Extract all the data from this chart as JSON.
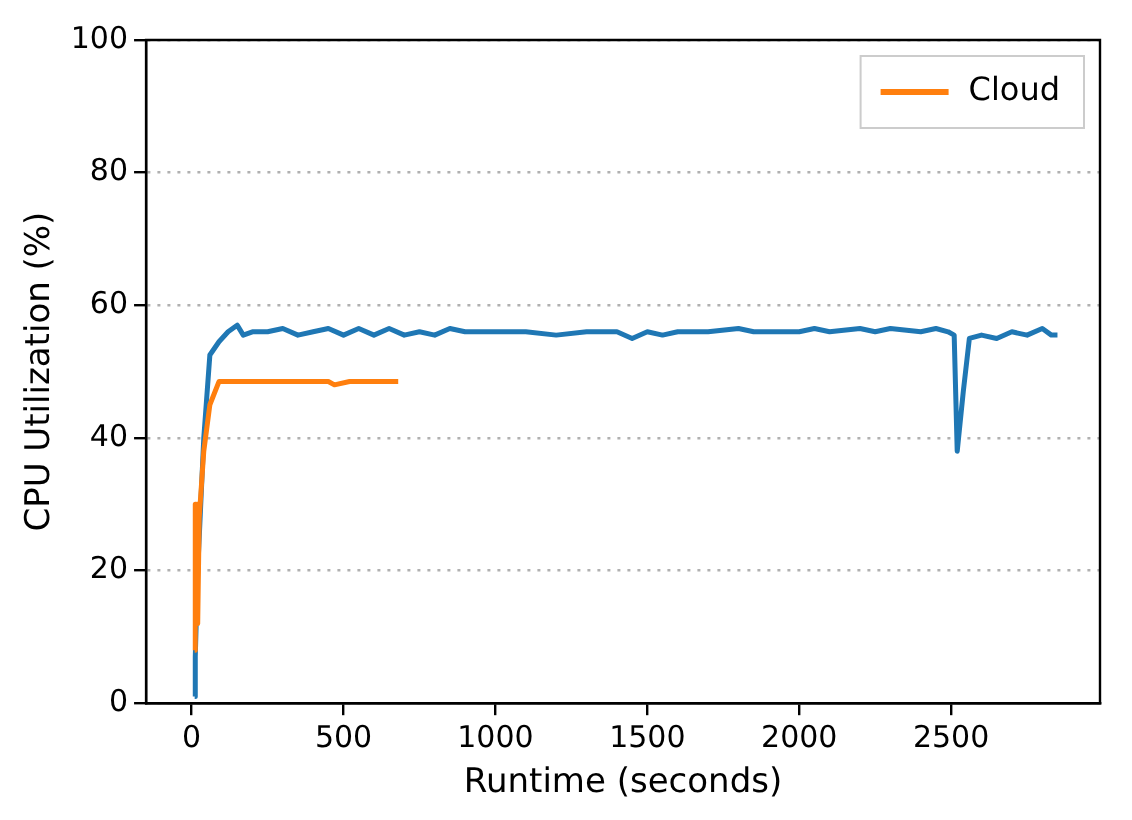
{
  "chart_data": {
    "type": "line",
    "xlabel": "Runtime (seconds)",
    "ylabel": "CPU Utilization (%)",
    "xlim": [
      -150,
      2990
    ],
    "ylim": [
      0,
      100
    ],
    "xticks": [
      0,
      500,
      1000,
      1500,
      2000,
      2500
    ],
    "yticks": [
      0,
      20,
      40,
      60,
      80,
      100
    ],
    "grid": "y",
    "legend": "top right",
    "marker": "none",
    "line_style": "solid",
    "series": [
      {
        "color": "#1f77b4",
        "x": [
          10,
          12,
          20,
          40,
          60,
          90,
          120,
          150,
          170,
          200,
          250,
          300,
          350,
          400,
          450,
          500,
          550,
          600,
          650,
          700,
          750,
          800,
          850,
          900,
          950,
          1000,
          1100,
          1200,
          1300,
          1400,
          1450,
          1500,
          1550,
          1600,
          1700,
          1800,
          1850,
          1900,
          2000,
          2050,
          2100,
          2200,
          2250,
          2300,
          2400,
          2450,
          2490,
          2510,
          2520,
          2540,
          2560,
          2600,
          2650,
          2700,
          2750,
          2800,
          2830,
          2850
        ],
        "values": [
          1,
          7,
          20,
          40,
          52.5,
          54.5,
          56,
          57,
          55.5,
          56,
          56,
          56.5,
          55.5,
          56,
          56.5,
          55.5,
          56.5,
          55.5,
          56.5,
          55.5,
          56,
          55.5,
          56.5,
          56,
          56,
          56,
          56,
          55.5,
          56,
          56,
          55,
          56,
          55.5,
          56,
          56,
          56.5,
          56,
          56,
          56,
          56.5,
          56,
          56.5,
          56,
          56.5,
          56,
          56.5,
          56,
          55.5,
          38,
          47,
          55,
          55.5,
          55,
          56,
          55.5,
          56.5,
          55.5,
          55.5
        ]
      },
      {
        "name": "Cloud",
        "color": "#ff7f0e",
        "x": [
          10,
          12,
          15,
          20,
          25,
          40,
          60,
          90,
          150,
          300,
          450,
          470,
          520,
          600,
          680
        ],
        "values": [
          8,
          30,
          30,
          12,
          28,
          38,
          45,
          48.5,
          48.5,
          48.5,
          48.5,
          48,
          48.5,
          48.5,
          48.5
        ]
      }
    ]
  }
}
